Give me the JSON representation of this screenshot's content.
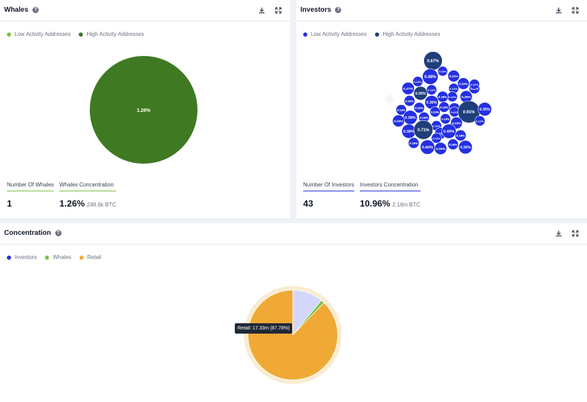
{
  "whales": {
    "title": "Whales",
    "legend": [
      {
        "label": "Low Activity Addresses",
        "color": "#7ac143"
      },
      {
        "label": "High Activity Addresses",
        "color": "#3f7a22"
      }
    ],
    "stats": [
      {
        "label": "Number Of Whales",
        "value": "1",
        "sub": "",
        "underline": "#7ac143"
      },
      {
        "label": "Whales Concentration",
        "value": "1.26%",
        "sub": "248.6k BTC",
        "underline": "#7ac143"
      }
    ]
  },
  "investors": {
    "title": "Investors",
    "legend": [
      {
        "label": "Low Activity Addresses",
        "color": "#2430e0"
      },
      {
        "label": "High Activity Addresses",
        "color": "#1f3f7a"
      }
    ],
    "stats": [
      {
        "label": "Number Of Investors",
        "value": "43",
        "sub": "",
        "underline": "#2430e0"
      },
      {
        "label": "Investors Concentration",
        "value": "10.96%",
        "sub": "2.16m BTC",
        "underline": "#2430e0"
      }
    ]
  },
  "concentration": {
    "title": "Concentration",
    "legend": [
      {
        "label": "Investors",
        "color": "#2430e0"
      },
      {
        "label": "Whales",
        "color": "#7ac143"
      },
      {
        "label": "Retail",
        "color": "#f0a935"
      }
    ],
    "tooltip": "Retail: 17.33m (87.78%)"
  },
  "icons": {
    "download": "download-icon",
    "expand": "expand-icon",
    "help": "help-icon"
  },
  "chart_data": [
    {
      "type": "pie",
      "categories": [
        "High Activity Addresses"
      ],
      "values": [
        1.26
      ],
      "data_labels": [
        "1.26%"
      ],
      "colors": [
        "#3f7a22"
      ]
    },
    {
      "type": "scatter",
      "categories": [
        "0.67%",
        "0.10%",
        "0.48%",
        "0.22%",
        "0.12%",
        "0.22%",
        "0.12%",
        "0.27%",
        "0.36%",
        "0.12%",
        "0.12%",
        "0.25%",
        "0.16%",
        "0.35%",
        "0.18%",
        "0.19%",
        "0.16%",
        "0.15%",
        "0.14%",
        "0.11%",
        "0.91%",
        "0.35%",
        "0.38%",
        "0.15%",
        "0.13%",
        "0.24%",
        "0.12%",
        "0.23%",
        "0.12%",
        "0.38%",
        "0.71%",
        "0.21%",
        "0.40%",
        "0.18%",
        "0.12%",
        "0.16%",
        "0.40%",
        "0.26%",
        "0.16%",
        "0.35%",
        "0.12%",
        "0.13%",
        "0.14%"
      ],
      "values": [
        0.67,
        0.1,
        0.48,
        0.22,
        0.12,
        0.22,
        0.12,
        0.27,
        0.36,
        0.12,
        0.12,
        0.25,
        0.16,
        0.35,
        0.18,
        0.19,
        0.16,
        0.15,
        0.14,
        0.11,
        0.91,
        0.35,
        0.38,
        0.15,
        0.13,
        0.24,
        0.12,
        0.23,
        0.12,
        0.38,
        0.71,
        0.21,
        0.4,
        0.18,
        0.12,
        0.16,
        0.4,
        0.26,
        0.16,
        0.35,
        0.12,
        0.13,
        0.14
      ],
      "high_activity": [
        true,
        false,
        false,
        false,
        false,
        false,
        false,
        false,
        true,
        false,
        false,
        false,
        false,
        false,
        false,
        false,
        false,
        false,
        false,
        false,
        true,
        false,
        false,
        false,
        false,
        false,
        false,
        false,
        false,
        false,
        true,
        false,
        false,
        false,
        false,
        false,
        false,
        false,
        false,
        false,
        false,
        false,
        false
      ]
    },
    {
      "type": "pie",
      "categories": [
        "Investors",
        "Whales",
        "Retail"
      ],
      "values": [
        10.96,
        1.26,
        87.78
      ],
      "colors": [
        "#d4d6fb",
        "#7ac143",
        "#f0a935"
      ]
    }
  ]
}
